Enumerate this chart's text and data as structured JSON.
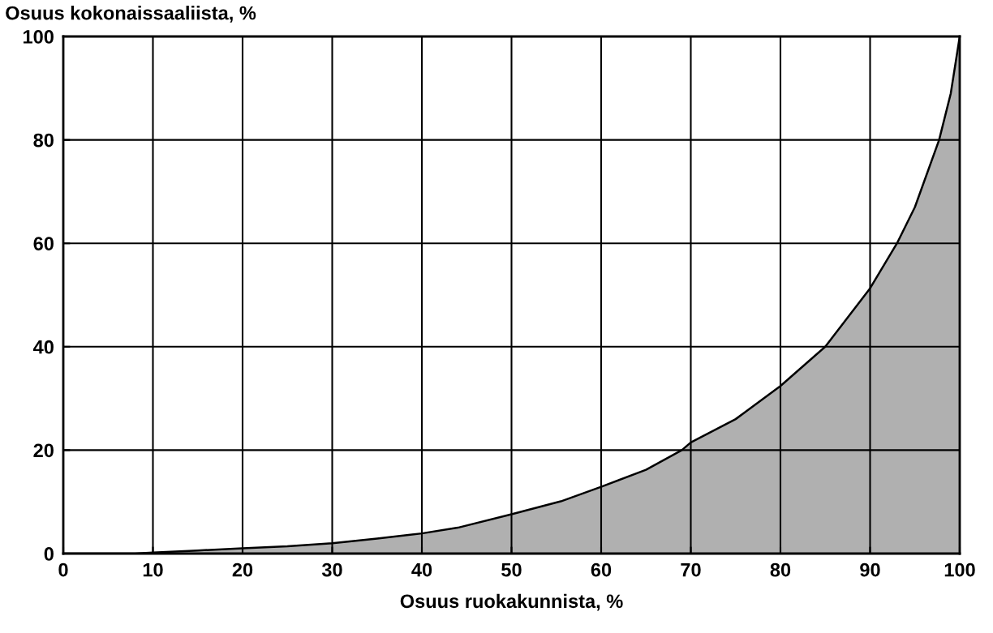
{
  "chart_data": {
    "type": "area",
    "ylabel": "Osuus kokonaissaaliista, %",
    "xlabel": "Osuus ruokakunnista, %",
    "x": [
      0,
      8,
      10,
      15,
      20,
      25,
      30,
      35,
      40,
      44,
      50,
      55.5,
      60,
      65,
      69,
      70,
      75,
      80,
      85,
      90,
      93,
      95,
      97.7,
      99,
      100
    ],
    "series": [
      {
        "color": "#b0b0b0",
        "values": [
          0,
          0,
          0.2,
          0.6,
          1,
          1.4,
          2,
          2.9,
          3.9,
          5,
          7.6,
          10.1,
          12.9,
          16.2,
          20,
          21.5,
          26,
          32.4,
          40,
          51.3,
          60,
          67,
          80,
          89,
          100
        ]
      }
    ],
    "xlim": [
      0,
      100
    ],
    "ylim": [
      0,
      100
    ],
    "xticks": [
      0,
      10,
      20,
      30,
      40,
      50,
      60,
      70,
      80,
      90,
      100
    ],
    "yticks": [
      0,
      20,
      40,
      60,
      80,
      100
    ],
    "grid": true
  }
}
